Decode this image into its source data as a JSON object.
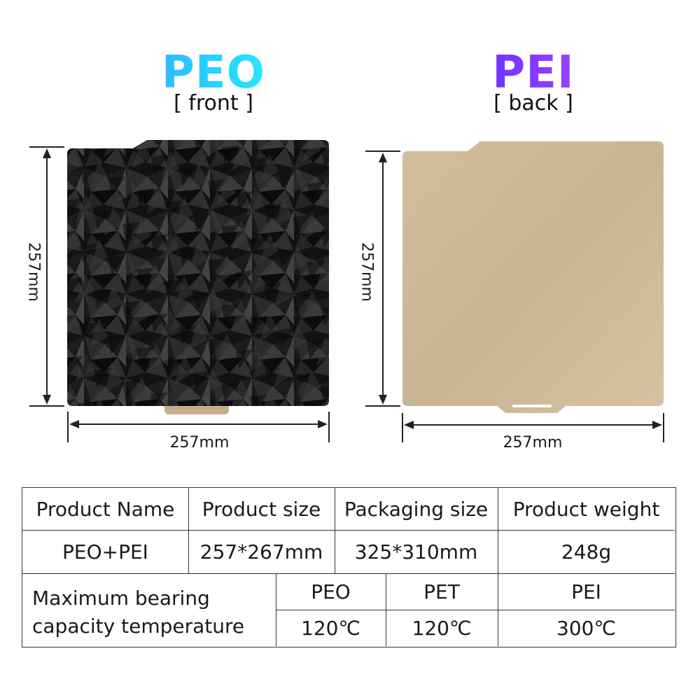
{
  "front": {
    "title": "PEO",
    "subtitle": "[ front ]",
    "width_label": "257mm",
    "height_label": "257mm"
  },
  "back": {
    "title": "PEI",
    "subtitle": "[ back ]",
    "width_label": "257mm",
    "height_label": "257mm"
  },
  "table": {
    "headers": [
      "Product Name",
      "Product size",
      "Packaging size",
      "Product weight"
    ],
    "row": [
      "PEO+PEI",
      "257*267mm",
      "325*310mm",
      "248g"
    ],
    "bearing_label_line1": "Maximum bearing",
    "bearing_label_line2": "capacity temperature",
    "materials": [
      "PEO",
      "PET",
      "PEI"
    ],
    "temperatures": [
      "120℃",
      "120℃",
      "300℃"
    ]
  },
  "colors": {
    "peo_gradient": [
      "#3aa7ff",
      "#39f0ff"
    ],
    "pei_gradient": [
      "#5b2dff",
      "#b04dff"
    ],
    "pei_surface": "#c7b28c",
    "peo_surface": "#141414"
  }
}
